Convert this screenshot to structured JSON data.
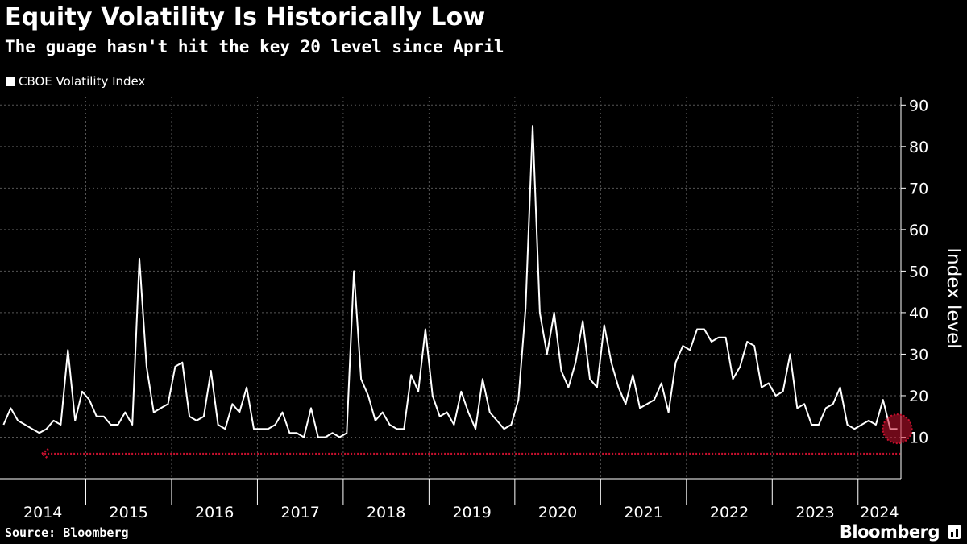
{
  "header": {
    "title": "Equity Volatility Is Historically Low",
    "subtitle": "The guage hasn't hit the key 20 level since April"
  },
  "footer": {
    "source": "Source: Bloomberg",
    "brand": "Bloomberg"
  },
  "colors": {
    "background": "#000000",
    "line": "#ffffff",
    "grid": "#555555",
    "highlight": "#c8102e"
  },
  "chart_data": {
    "type": "line",
    "title": "Equity Volatility Is Historically Low",
    "subtitle": "The guage hasn't hit the key 20 level since April",
    "ylabel": "Index level",
    "xlabel": "",
    "ylim": [
      0,
      92
    ],
    "yticks": [
      10,
      20,
      30,
      40,
      50,
      60,
      70,
      80,
      90
    ],
    "xticks": [
      "2014",
      "2015",
      "2016",
      "2017",
      "2018",
      "2019",
      "2020",
      "2021",
      "2022",
      "2023",
      "2024"
    ],
    "xlim": [
      "2014-01",
      "2024-07"
    ],
    "grid": true,
    "legend_position": "top-left",
    "series": [
      {
        "name": "CBOE Volatility Index",
        "x": [
          "2014-01",
          "2014-02",
          "2014-03",
          "2014-04",
          "2014-05",
          "2014-06",
          "2014-07",
          "2014-08",
          "2014-09",
          "2014-10",
          "2014-11",
          "2014-12",
          "2015-01",
          "2015-02",
          "2015-03",
          "2015-04",
          "2015-05",
          "2015-06",
          "2015-07",
          "2015-08",
          "2015-09",
          "2015-10",
          "2015-11",
          "2015-12",
          "2016-01",
          "2016-02",
          "2016-03",
          "2016-04",
          "2016-05",
          "2016-06",
          "2016-07",
          "2016-08",
          "2016-09",
          "2016-10",
          "2016-11",
          "2016-12",
          "2017-01",
          "2017-02",
          "2017-03",
          "2017-04",
          "2017-05",
          "2017-06",
          "2017-07",
          "2017-08",
          "2017-09",
          "2017-10",
          "2017-11",
          "2017-12",
          "2018-01",
          "2018-02",
          "2018-03",
          "2018-04",
          "2018-05",
          "2018-06",
          "2018-07",
          "2018-08",
          "2018-09",
          "2018-10",
          "2018-11",
          "2018-12",
          "2019-01",
          "2019-02",
          "2019-03",
          "2019-04",
          "2019-05",
          "2019-06",
          "2019-07",
          "2019-08",
          "2019-09",
          "2019-10",
          "2019-11",
          "2019-12",
          "2020-01",
          "2020-02",
          "2020-03",
          "2020-04",
          "2020-05",
          "2020-06",
          "2020-07",
          "2020-08",
          "2020-09",
          "2020-10",
          "2020-11",
          "2020-12",
          "2021-01",
          "2021-02",
          "2021-03",
          "2021-04",
          "2021-05",
          "2021-06",
          "2021-07",
          "2021-08",
          "2021-09",
          "2021-10",
          "2021-11",
          "2021-12",
          "2022-01",
          "2022-02",
          "2022-03",
          "2022-04",
          "2022-05",
          "2022-06",
          "2022-07",
          "2022-08",
          "2022-09",
          "2022-10",
          "2022-11",
          "2022-12",
          "2023-01",
          "2023-02",
          "2023-03",
          "2023-04",
          "2023-05",
          "2023-06",
          "2023-07",
          "2023-08",
          "2023-09",
          "2023-10",
          "2023-11",
          "2023-12",
          "2024-01",
          "2024-02",
          "2024-03",
          "2024-04",
          "2024-05",
          "2024-06"
        ],
        "values": [
          13,
          17,
          14,
          13,
          12,
          11,
          12,
          14,
          13,
          31,
          14,
          21,
          19,
          15,
          15,
          13,
          13,
          16,
          13,
          53,
          27,
          16,
          17,
          18,
          27,
          28,
          15,
          14,
          15,
          26,
          13,
          12,
          18,
          16,
          22,
          12,
          12,
          12,
          13,
          16,
          11,
          11,
          10,
          17,
          10,
          10,
          11,
          10,
          11,
          50,
          24,
          20,
          14,
          16,
          13,
          12,
          12,
          25,
          21,
          36,
          20,
          15,
          16,
          13,
          21,
          16,
          12,
          24,
          16,
          14,
          12,
          13,
          19,
          41,
          85,
          40,
          30,
          40,
          26,
          22,
          28,
          38,
          24,
          22,
          37,
          28,
          22,
          18,
          25,
          17,
          18,
          19,
          23,
          16,
          28,
          32,
          31,
          36,
          36,
          33,
          34,
          34,
          24,
          27,
          33,
          32,
          22,
          23,
          20,
          21,
          30,
          17,
          18,
          13,
          13,
          17,
          18,
          22,
          13,
          12,
          13,
          14,
          13,
          19,
          12,
          12
        ]
      }
    ],
    "annotations": [
      {
        "type": "arrow",
        "direction": "left",
        "value": 6,
        "x_from": "2024-06",
        "x_to": "2014-01",
        "color": "#c8102e"
      },
      {
        "type": "circle",
        "x": "2024-06",
        "value": 12,
        "color": "#c8102e"
      }
    ]
  }
}
